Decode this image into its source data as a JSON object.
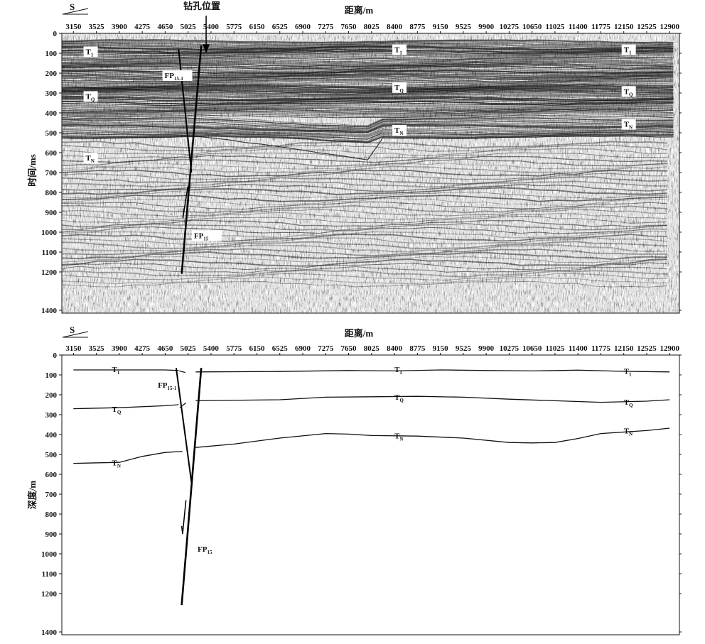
{
  "top_panel": {
    "direction_label": "S",
    "borehole_label": "钻孔位置",
    "xlabel": "距离/m",
    "ylabel": "时间/ms",
    "x_ticks": [
      "3150",
      "3525",
      "3900",
      "4275",
      "4650",
      "5025",
      "5400",
      "5775",
      "6150",
      "6525",
      "6900",
      "7275",
      "7650",
      "8025",
      "8400",
      "8775",
      "9150",
      "9525",
      "9900",
      "10275",
      "10650",
      "11025",
      "11400",
      "11775",
      "12150",
      "12525",
      "12900"
    ],
    "y_ticks": [
      "0",
      "100",
      "200",
      "300",
      "400",
      "500",
      "600",
      "700",
      "800",
      "900",
      "1000",
      "1100",
      "1200",
      "1400"
    ],
    "horizon_labels": [
      {
        "id": "t1-a",
        "base": "T",
        "sub": "1",
        "x": 3350,
        "y": 105
      },
      {
        "id": "t1-b",
        "base": "T",
        "sub": "1",
        "x": 8400,
        "y": 95
      },
      {
        "id": "t1-c",
        "base": "T",
        "sub": "1",
        "x": 12150,
        "y": 95
      },
      {
        "id": "tq-a",
        "base": "T",
        "sub": "Q",
        "x": 3350,
        "y": 330
      },
      {
        "id": "tq-b",
        "base": "T",
        "sub": "Q",
        "x": 8400,
        "y": 285
      },
      {
        "id": "tq-c",
        "base": "T",
        "sub": "Q",
        "x": 12150,
        "y": 305
      },
      {
        "id": "tn-a",
        "base": "T",
        "sub": "N",
        "x": 3350,
        "y": 640
      },
      {
        "id": "tn-b",
        "base": "T",
        "sub": "N",
        "x": 8400,
        "y": 500
      },
      {
        "id": "tn-c",
        "base": "T",
        "sub": "N",
        "x": 12150,
        "y": 470
      }
    ],
    "fault_labels": [
      {
        "id": "fp15-1",
        "base": "FP",
        "sub": "15-1",
        "x": 4640,
        "y": 225
      },
      {
        "id": "fp15",
        "base": "FP",
        "sub": "15",
        "x": 5120,
        "y": 1030
      }
    ]
  },
  "bottom_panel": {
    "direction_label": "S",
    "xlabel": "距离/m",
    "ylabel": "深度/m",
    "x_ticks": [
      "3150",
      "3525",
      "3900",
      "4275",
      "4650",
      "5025",
      "5400",
      "5775",
      "6150",
      "6525",
      "6900",
      "7275",
      "7650",
      "8025",
      "8400",
      "8775",
      "9150",
      "9525",
      "9900",
      "10275",
      "10650",
      "11025",
      "11400",
      "11775",
      "12150",
      "12525",
      "12900"
    ],
    "y_ticks": [
      "0",
      "100",
      "200",
      "300",
      "400",
      "500",
      "600",
      "700",
      "800",
      "900",
      "1000",
      "1100",
      "1200",
      "1400"
    ],
    "horizon_labels": [
      {
        "id": "t1-a",
        "base": "T",
        "sub": "1",
        "x": 3780,
        "y": 85
      },
      {
        "id": "t1-b",
        "base": "T",
        "sub": "1",
        "x": 8400,
        "y": 85
      },
      {
        "id": "t1-c",
        "base": "T",
        "sub": "1",
        "x": 12150,
        "y": 95
      },
      {
        "id": "tq-a",
        "base": "T",
        "sub": "Q",
        "x": 3780,
        "y": 285
      },
      {
        "id": "tq-b",
        "base": "T",
        "sub": "Q",
        "x": 8400,
        "y": 225
      },
      {
        "id": "tq-c",
        "base": "T",
        "sub": "Q",
        "x": 12150,
        "y": 250
      },
      {
        "id": "tn-a",
        "base": "T",
        "sub": "N",
        "x": 3780,
        "y": 555
      },
      {
        "id": "tn-b",
        "base": "T",
        "sub": "N",
        "x": 8400,
        "y": 420
      },
      {
        "id": "tn-c",
        "base": "T",
        "sub": "N",
        "x": 12150,
        "y": 395
      }
    ],
    "fault_labels": [
      {
        "id": "fp15-1",
        "base": "FP",
        "sub": "15-1",
        "x": 4530,
        "y": 165
      },
      {
        "id": "fp15",
        "base": "FP",
        "sub": "15",
        "x": 5180,
        "y": 990
      }
    ],
    "horizons": [
      {
        "id": "t1",
        "segments": [
          [
            [
              3150,
              75
            ],
            [
              4650,
              75
            ],
            [
              4870,
              78
            ]
          ],
          [
            [
              4880,
              80
            ],
            [
              4980,
              88
            ]
          ],
          [
            [
              5150,
              85
            ],
            [
              6525,
              83
            ],
            [
              7650,
              78
            ],
            [
              8400,
              80
            ],
            [
              9150,
              75
            ],
            [
              9900,
              78
            ],
            [
              10650,
              80
            ],
            [
              11400,
              76
            ],
            [
              12150,
              82
            ],
            [
              12900,
              85
            ]
          ]
        ]
      },
      {
        "id": "tq",
        "segments": [
          [
            [
              3150,
              270
            ],
            [
              3900,
              265
            ],
            [
              4650,
              255
            ],
            [
              4870,
              250
            ]
          ],
          [
            [
              4890,
              265
            ],
            [
              4990,
              240
            ]
          ],
          [
            [
              5150,
              230
            ],
            [
              6525,
              225
            ],
            [
              7275,
              212
            ],
            [
              8025,
              210
            ],
            [
              8775,
              208
            ],
            [
              9525,
              212
            ],
            [
              10275,
              222
            ],
            [
              11025,
              230
            ],
            [
              11775,
              238
            ],
            [
              12525,
              232
            ],
            [
              12900,
              225
            ]
          ]
        ]
      },
      {
        "id": "tn",
        "segments": [
          [
            [
              3150,
              545
            ],
            [
              3900,
              540
            ],
            [
              4275,
              510
            ],
            [
              4650,
              490
            ],
            [
              4930,
              485
            ]
          ],
          [
            [
              5150,
              465
            ],
            [
              5775,
              448
            ],
            [
              6525,
              418
            ],
            [
              7275,
              395
            ],
            [
              7650,
              398
            ],
            [
              8025,
              405
            ],
            [
              8775,
              408
            ],
            [
              9525,
              418
            ],
            [
              10275,
              440
            ],
            [
              10650,
              442
            ],
            [
              11025,
              440
            ],
            [
              11400,
              420
            ],
            [
              11775,
              395
            ],
            [
              12525,
              380
            ],
            [
              12900,
              368
            ]
          ]
        ]
      }
    ],
    "faults": [
      {
        "id": "fp15",
        "points": [
          [
            5240,
            65
          ],
          [
            4920,
            1260
          ]
        ]
      },
      {
        "id": "fp15-1",
        "points": [
          [
            4830,
            65
          ],
          [
            5080,
            640
          ]
        ]
      }
    ]
  }
}
